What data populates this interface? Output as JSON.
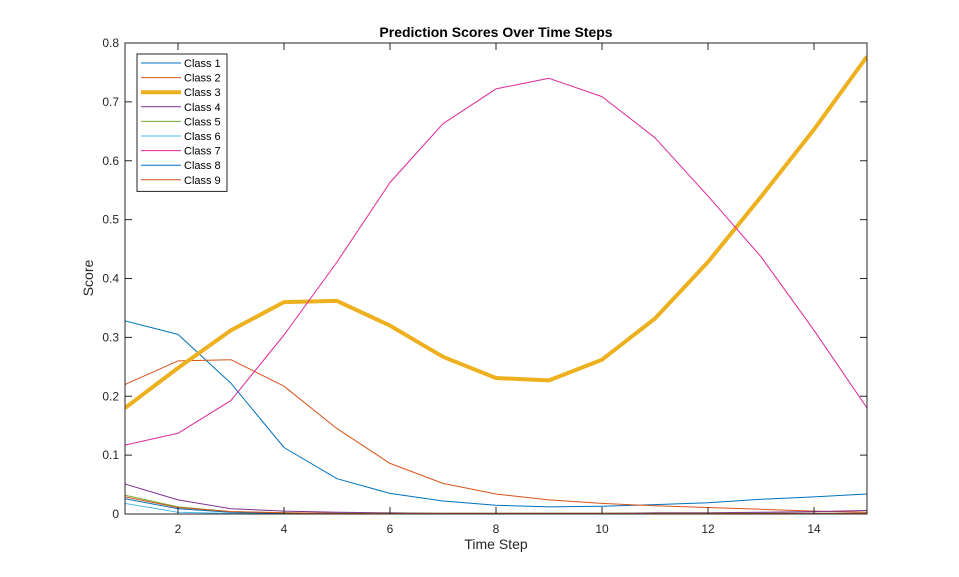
{
  "chart_data": {
    "type": "line",
    "title": "Prediction Scores Over Time Steps",
    "xlabel": "Time Step",
    "ylabel": "Score",
    "xlim": [
      1,
      15
    ],
    "ylim": [
      0,
      0.8
    ],
    "xticks": [
      2,
      4,
      6,
      8,
      10,
      12,
      14
    ],
    "yticks": [
      0,
      0.1,
      0.2,
      0.3,
      0.4,
      0.5,
      0.6,
      0.7,
      0.8
    ],
    "ytick_labels": [
      "0",
      "0.1",
      "0.2",
      "0.3",
      "0.4",
      "0.5",
      "0.6",
      "0.7",
      "0.8"
    ],
    "grid": false,
    "legend_position": "upper-left (inside)",
    "x": [
      1,
      2,
      3,
      4,
      5,
      6,
      7,
      8,
      9,
      10,
      11,
      12,
      13,
      14,
      15
    ],
    "series": [
      {
        "name": "Class 1",
        "color": "#0072BD",
        "width": 1,
        "values": [
          0.328,
          0.305,
          0.222,
          0.113,
          0.06,
          0.035,
          0.022,
          0.015,
          0.012,
          0.013,
          0.016,
          0.019,
          0.025,
          0.029,
          0.034
        ]
      },
      {
        "name": "Class 2",
        "color": "#D95319",
        "width": 1,
        "values": [
          0.22,
          0.26,
          0.262,
          0.217,
          0.145,
          0.086,
          0.052,
          0.034,
          0.024,
          0.018,
          0.014,
          0.011,
          0.008,
          0.005,
          0.003
        ]
      },
      {
        "name": "Class 3",
        "color": "#EDB120",
        "width": 4,
        "values": [
          0.18,
          0.248,
          0.312,
          0.36,
          0.362,
          0.32,
          0.267,
          0.231,
          0.227,
          0.262,
          0.332,
          0.428,
          0.539,
          0.653,
          0.777
        ]
      },
      {
        "name": "Class 4",
        "color": "#7E2F8E",
        "width": 1,
        "values": [
          0.051,
          0.024,
          0.009,
          0.005,
          0.003,
          0.002,
          0.001,
          0.001,
          0.001,
          0.001,
          0.002,
          0.002,
          0.003,
          0.004,
          0.006
        ]
      },
      {
        "name": "Class 5",
        "color": "#77AC30",
        "width": 1,
        "values": [
          0.032,
          0.012,
          0.004,
          0.002,
          0.001,
          0.001,
          0.001,
          0.001,
          0.001,
          0.001,
          0.001,
          0.001,
          0.001,
          0.001,
          0.001
        ]
      },
      {
        "name": "Class 6",
        "color": "#4DBEEE",
        "width": 1,
        "values": [
          0.018,
          0.003,
          0.001,
          0.001,
          0.001,
          0.001,
          0.001,
          0.001,
          0.001,
          0.001,
          0.001,
          0.001,
          0.001,
          0.001,
          0.001
        ]
      },
      {
        "name": "Class 7",
        "color": "#E0259A",
        "width": 1,
        "values": [
          0.117,
          0.137,
          0.193,
          0.304,
          0.428,
          0.563,
          0.663,
          0.722,
          0.74,
          0.709,
          0.639,
          0.54,
          0.437,
          0.312,
          0.18
        ]
      },
      {
        "name": "Class 8",
        "color": "#0072BD",
        "width": 1,
        "values": [
          0.026,
          0.009,
          0.003,
          0.001,
          0.001,
          0.001,
          0.001,
          0.001,
          0.001,
          0.001,
          0.001,
          0.001,
          0.001,
          0.001,
          0.001
        ]
      },
      {
        "name": "Class 9",
        "color": "#D95319",
        "width": 1,
        "values": [
          0.029,
          0.011,
          0.004,
          0.002,
          0.001,
          0.001,
          0.001,
          0.001,
          0.001,
          0.001,
          0.001,
          0.001,
          0.001,
          0.001,
          0.001
        ]
      }
    ]
  }
}
